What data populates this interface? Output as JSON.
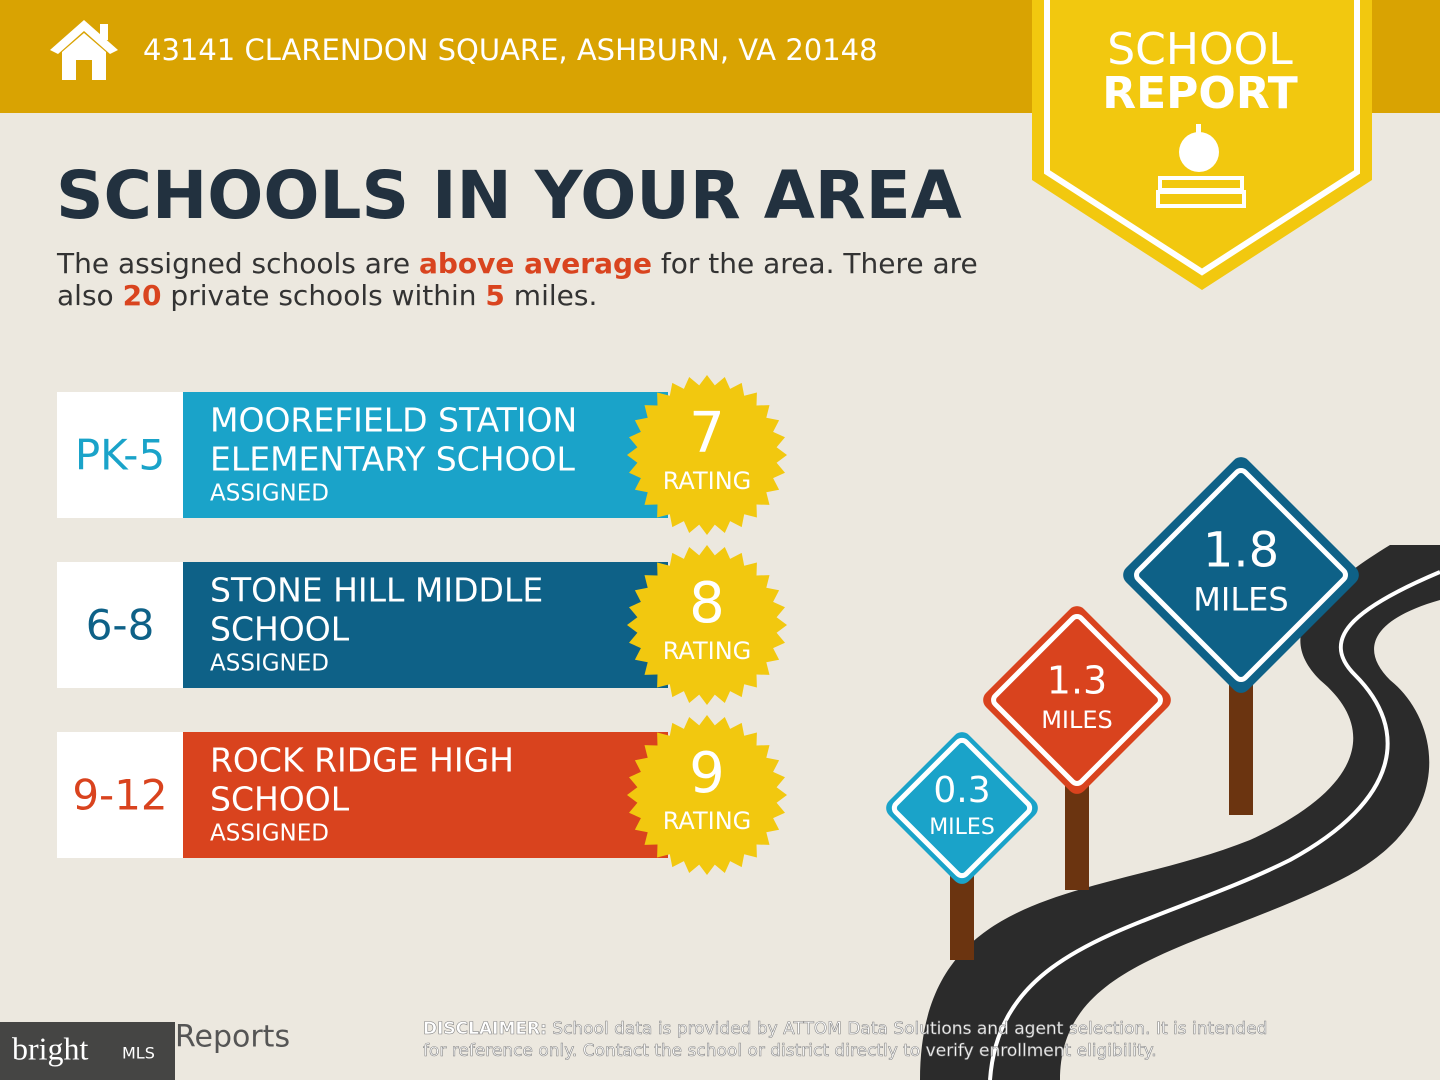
{
  "header": {
    "address": "43141 CLARENDON SQUARE, ASHBURN, VA 20148"
  },
  "badge": {
    "line1": "SCHOOL",
    "line2": "REPORT"
  },
  "title": "SCHOOLS IN YOUR AREA",
  "summary": [
    "The assigned schools are ",
    "above average",
    " for the area. There are",
    "also ",
    "20",
    " private schools within ",
    "5",
    " miles."
  ],
  "schools": [
    {
      "grade": "PK-5",
      "name": [
        "MOOREFIELD STATION",
        "ELEMENTARY SCHOOL"
      ],
      "status": "ASSIGNED",
      "rating": 7,
      "rating_label": "RATING"
    },
    {
      "grade": "6-8",
      "name": [
        "STONE HILL MIDDLE",
        "SCHOOL"
      ],
      "status": "ASSIGNED",
      "rating": 8,
      "rating_label": "RATING"
    },
    {
      "grade": "9-12",
      "name": [
        "ROCK RIDGE HIGH",
        "SCHOOL"
      ],
      "status": "ASSIGNED",
      "rating": 9,
      "rating_label": "RATING"
    }
  ],
  "signs": [
    {
      "distance": 0.3,
      "unit": "MILES"
    },
    {
      "distance": 1.3,
      "unit": "MILES"
    },
    {
      "distance": 1.8,
      "unit": "MILES"
    }
  ],
  "footer": {
    "brand": "Reports",
    "watermark": "bright",
    "watermark_suffix": "MLS",
    "disclaimer_label": "DISCLAIMER:",
    "disclaimer_lines": [
      " School data is provided by ATTOM Data Solutions and agent selection. It is intended",
      "for reference only. Contact the school or district directly to verify enrollment eligibility."
    ]
  }
}
